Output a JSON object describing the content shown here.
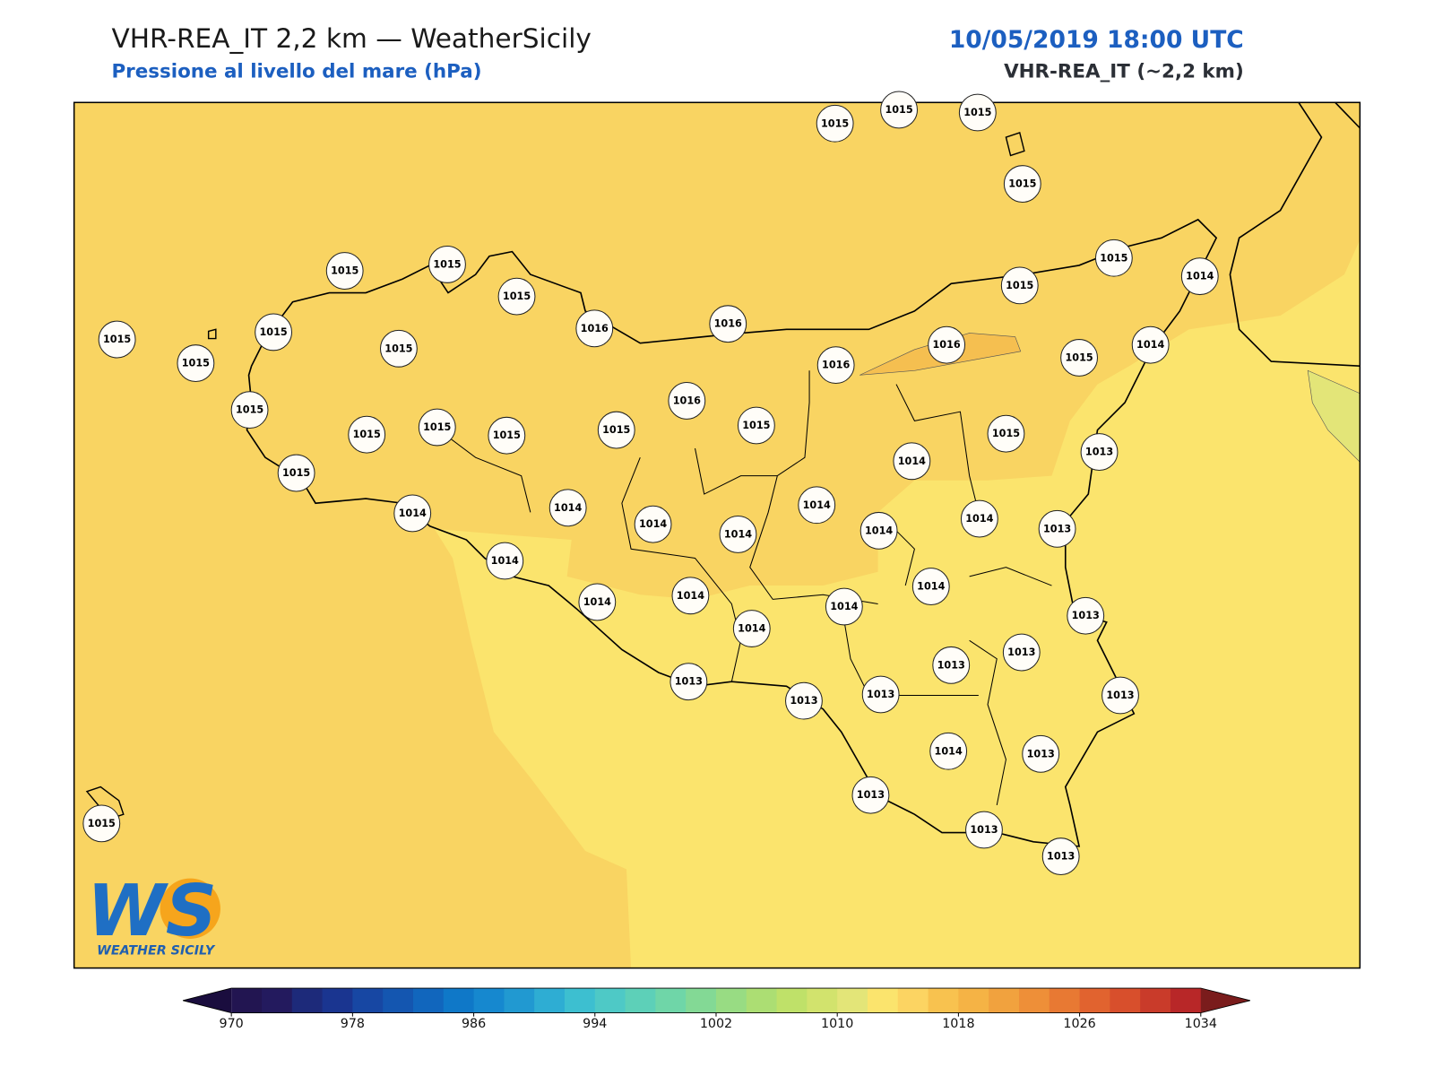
{
  "header": {
    "title": "VHR-REA_IT 2,2 km — WeatherSicily",
    "subtitle": "Pressione al livello del mare (hPa)",
    "datetime": "10/05/2019 18:00 UTC",
    "model": "VHR-REA_IT (~2,2 km)"
  },
  "stations": [
    1015,
    1015,
    1015,
    1015,
    1015,
    1015,
    1015,
    1016,
    1016,
    1015,
    1014,
    1015,
    1015,
    1015,
    1015,
    1015,
    1016,
    1016,
    1015,
    1014,
    1015,
    1016,
    1015,
    1015,
    1015,
    1015,
    1015,
    1015,
    1013,
    1014,
    1015,
    1014,
    1014,
    1014,
    1014,
    1014,
    1014,
    1014,
    1013,
    1014,
    1014,
    1014,
    1014,
    1014,
    1014,
    1013,
    1013,
    1013,
    1013,
    1013,
    1013,
    1013,
    1014,
    1013,
    1013,
    1015,
    1013,
    1013
  ],
  "colorbar": {
    "ticks": [
      970,
      978,
      986,
      994,
      1002,
      1010,
      1018,
      1026,
      1034
    ],
    "colors": [
      "#221551",
      "#231a5e",
      "#1d2a7a",
      "#1a3590",
      "#1747a3",
      "#1456b0",
      "#1166bd",
      "#0f78c8",
      "#1688cf",
      "#2199d1",
      "#2eadd3",
      "#3dbfd0",
      "#4ec9c6",
      "#5dd0b8",
      "#6fd6a8",
      "#83d995",
      "#98dc83",
      "#acde73",
      "#bfe169",
      "#d2e36d",
      "#e3e578",
      "#fbe46d",
      "#fcd462",
      "#f8c24f",
      "#f5b345",
      "#f1a23e",
      "#ee8f38",
      "#e87933",
      "#e1632f",
      "#d84f2c",
      "#c93b2a",
      "#b82728"
    ],
    "under": "#1a0d3e",
    "over": "#7a1c1c"
  },
  "logo": {
    "mark": "WS",
    "name": "WEATHER SICILY"
  }
}
